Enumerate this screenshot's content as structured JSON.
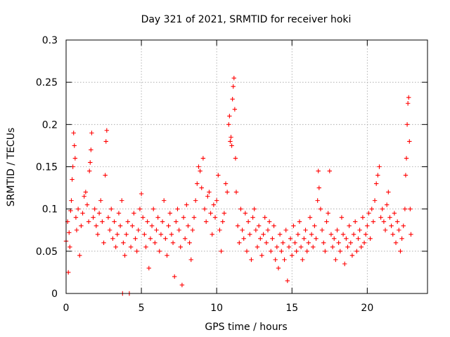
{
  "chart_data": {
    "type": "scatter",
    "title": "Day 321 of 2021, SRMTID for receiver hoki",
    "xlabel": "GPS time / hours",
    "ylabel": "SRMTID / TECUs",
    "xlim": [
      0,
      24
    ],
    "ylim": [
      0,
      0.3
    ],
    "x_ticks": [
      0,
      5,
      10,
      15,
      20
    ],
    "x_tick_labels": [
      "0",
      "5",
      "10",
      "15",
      "20"
    ],
    "y_ticks": [
      0,
      0.05,
      0.1,
      0.15,
      0.2,
      0.25,
      0.3
    ],
    "y_tick_labels": [
      "0",
      "0.05",
      "0.1",
      "0.15",
      "0.2",
      "0.25",
      "0.3"
    ],
    "grid": true,
    "marker": "plus",
    "color": "#ff0000",
    "series": [
      {
        "name": "SRMTID",
        "points": [
          [
            0.0,
            0.062
          ],
          [
            0.1,
            0.085
          ],
          [
            0.15,
            0.025
          ],
          [
            0.2,
            0.072
          ],
          [
            0.25,
            0.055
          ],
          [
            0.3,
            0.098
          ],
          [
            0.35,
            0.11
          ],
          [
            0.4,
            0.135
          ],
          [
            0.45,
            0.15
          ],
          [
            0.5,
            0.19
          ],
          [
            0.55,
            0.175
          ],
          [
            0.6,
            0.16
          ],
          [
            0.65,
            0.09
          ],
          [
            0.7,
            0.075
          ],
          [
            0.8,
            0.1
          ],
          [
            0.9,
            0.045
          ],
          [
            1.0,
            0.08
          ],
          [
            1.1,
            0.095
          ],
          [
            1.2,
            0.115
          ],
          [
            1.3,
            0.12
          ],
          [
            1.4,
            0.105
          ],
          [
            1.5,
            0.085
          ],
          [
            1.55,
            0.145
          ],
          [
            1.6,
            0.155
          ],
          [
            1.65,
            0.17
          ],
          [
            1.7,
            0.19
          ],
          [
            1.8,
            0.09
          ],
          [
            1.9,
            0.1
          ],
          [
            2.0,
            0.08
          ],
          [
            2.1,
            0.07
          ],
          [
            2.2,
            0.095
          ],
          [
            2.3,
            0.11
          ],
          [
            2.4,
            0.085
          ],
          [
            2.5,
            0.06
          ],
          [
            2.6,
            0.14
          ],
          [
            2.65,
            0.18
          ],
          [
            2.7,
            0.193
          ],
          [
            2.8,
            0.09
          ],
          [
            2.9,
            0.075
          ],
          [
            3.0,
            0.1
          ],
          [
            3.1,
            0.065
          ],
          [
            3.2,
            0.085
          ],
          [
            3.3,
            0.055
          ],
          [
            3.4,
            0.07
          ],
          [
            3.5,
            0.095
          ],
          [
            3.6,
            0.08
          ],
          [
            3.7,
            0.11
          ],
          [
            3.75,
            0.0
          ],
          [
            3.8,
            0.06
          ],
          [
            3.9,
            0.045
          ],
          [
            4.0,
            0.07
          ],
          [
            4.1,
            0.085
          ],
          [
            4.2,
            0.0
          ],
          [
            4.3,
            0.055
          ],
          [
            4.4,
            0.08
          ],
          [
            4.5,
            0.095
          ],
          [
            4.6,
            0.065
          ],
          [
            4.7,
            0.05
          ],
          [
            4.8,
            0.075
          ],
          [
            4.9,
            0.1
          ],
          [
            5.0,
            0.118
          ],
          [
            5.1,
            0.09
          ],
          [
            5.2,
            0.07
          ],
          [
            5.3,
            0.055
          ],
          [
            5.4,
            0.085
          ],
          [
            5.5,
            0.03
          ],
          [
            5.6,
            0.065
          ],
          [
            5.7,
            0.08
          ],
          [
            5.8,
            0.1
          ],
          [
            5.9,
            0.06
          ],
          [
            6.0,
            0.075
          ],
          [
            6.1,
            0.09
          ],
          [
            6.2,
            0.05
          ],
          [
            6.3,
            0.07
          ],
          [
            6.4,
            0.085
          ],
          [
            6.5,
            0.11
          ],
          [
            6.6,
            0.065
          ],
          [
            6.7,
            0.045
          ],
          [
            6.8,
            0.08
          ],
          [
            6.9,
            0.095
          ],
          [
            7.0,
            0.07
          ],
          [
            7.1,
            0.06
          ],
          [
            7.2,
            0.02
          ],
          [
            7.3,
            0.085
          ],
          [
            7.4,
            0.1
          ],
          [
            7.5,
            0.075
          ],
          [
            7.6,
            0.055
          ],
          [
            7.7,
            0.01
          ],
          [
            7.8,
            0.09
          ],
          [
            7.9,
            0.065
          ],
          [
            8.0,
            0.105
          ],
          [
            8.1,
            0.08
          ],
          [
            8.2,
            0.06
          ],
          [
            8.3,
            0.04
          ],
          [
            8.4,
            0.075
          ],
          [
            8.5,
            0.09
          ],
          [
            8.6,
            0.11
          ],
          [
            8.7,
            0.13
          ],
          [
            8.8,
            0.15
          ],
          [
            8.9,
            0.145
          ],
          [
            9.0,
            0.125
          ],
          [
            9.1,
            0.16
          ],
          [
            9.2,
            0.1
          ],
          [
            9.3,
            0.085
          ],
          [
            9.4,
            0.115
          ],
          [
            9.5,
            0.12
          ],
          [
            9.6,
            0.095
          ],
          [
            9.7,
            0.07
          ],
          [
            9.8,
            0.105
          ],
          [
            9.9,
            0.09
          ],
          [
            10.0,
            0.11
          ],
          [
            10.1,
            0.14
          ],
          [
            10.2,
            0.075
          ],
          [
            10.3,
            0.05
          ],
          [
            10.4,
            0.085
          ],
          [
            10.5,
            0.095
          ],
          [
            10.6,
            0.13
          ],
          [
            10.7,
            0.12
          ],
          [
            10.8,
            0.2
          ],
          [
            10.85,
            0.21
          ],
          [
            10.9,
            0.18
          ],
          [
            10.95,
            0.185
          ],
          [
            11.0,
            0.175
          ],
          [
            11.05,
            0.23
          ],
          [
            11.1,
            0.245
          ],
          [
            11.15,
            0.255
          ],
          [
            11.2,
            0.218
          ],
          [
            11.25,
            0.16
          ],
          [
            11.3,
            0.12
          ],
          [
            11.4,
            0.08
          ],
          [
            11.5,
            0.06
          ],
          [
            11.6,
            0.1
          ],
          [
            11.7,
            0.075
          ],
          [
            11.8,
            0.065
          ],
          [
            11.9,
            0.095
          ],
          [
            12.0,
            0.05
          ],
          [
            12.1,
            0.085
          ],
          [
            12.2,
            0.07
          ],
          [
            12.3,
            0.04
          ],
          [
            12.4,
            0.09
          ],
          [
            12.5,
            0.1
          ],
          [
            12.6,
            0.075
          ],
          [
            12.7,
            0.055
          ],
          [
            12.8,
            0.08
          ],
          [
            12.9,
            0.065
          ],
          [
            13.0,
            0.045
          ],
          [
            13.1,
            0.07
          ],
          [
            13.2,
            0.09
          ],
          [
            13.3,
            0.06
          ],
          [
            13.4,
            0.075
          ],
          [
            13.5,
            0.085
          ],
          [
            13.6,
            0.05
          ],
          [
            13.7,
            0.065
          ],
          [
            13.8,
            0.08
          ],
          [
            13.9,
            0.04
          ],
          [
            14.0,
            0.055
          ],
          [
            14.1,
            0.03
          ],
          [
            14.2,
            0.07
          ],
          [
            14.3,
            0.05
          ],
          [
            14.4,
            0.06
          ],
          [
            14.5,
            0.04
          ],
          [
            14.6,
            0.075
          ],
          [
            14.7,
            0.015
          ],
          [
            14.8,
            0.055
          ],
          [
            14.9,
            0.065
          ],
          [
            15.0,
            0.045
          ],
          [
            15.1,
            0.08
          ],
          [
            15.2,
            0.06
          ],
          [
            15.3,
            0.05
          ],
          [
            15.4,
            0.07
          ],
          [
            15.5,
            0.085
          ],
          [
            15.6,
            0.055
          ],
          [
            15.7,
            0.04
          ],
          [
            15.8,
            0.065
          ],
          [
            15.9,
            0.075
          ],
          [
            16.0,
            0.05
          ],
          [
            16.1,
            0.06
          ],
          [
            16.2,
            0.09
          ],
          [
            16.3,
            0.07
          ],
          [
            16.4,
            0.055
          ],
          [
            16.5,
            0.08
          ],
          [
            16.6,
            0.065
          ],
          [
            16.7,
            0.11
          ],
          [
            16.75,
            0.145
          ],
          [
            16.8,
            0.125
          ],
          [
            16.9,
            0.1
          ],
          [
            17.0,
            0.075
          ],
          [
            17.1,
            0.06
          ],
          [
            17.2,
            0.05
          ],
          [
            17.3,
            0.085
          ],
          [
            17.4,
            0.095
          ],
          [
            17.5,
            0.145
          ],
          [
            17.6,
            0.07
          ],
          [
            17.7,
            0.055
          ],
          [
            17.8,
            0.065
          ],
          [
            17.9,
            0.04
          ],
          [
            18.0,
            0.075
          ],
          [
            18.1,
            0.06
          ],
          [
            18.2,
            0.05
          ],
          [
            18.3,
            0.09
          ],
          [
            18.4,
            0.07
          ],
          [
            18.5,
            0.035
          ],
          [
            18.6,
            0.065
          ],
          [
            18.7,
            0.055
          ],
          [
            18.8,
            0.08
          ],
          [
            18.9,
            0.06
          ],
          [
            19.0,
            0.045
          ],
          [
            19.1,
            0.07
          ],
          [
            19.2,
            0.085
          ],
          [
            19.3,
            0.05
          ],
          [
            19.4,
            0.065
          ],
          [
            19.5,
            0.075
          ],
          [
            19.6,
            0.055
          ],
          [
            19.7,
            0.09
          ],
          [
            19.8,
            0.06
          ],
          [
            19.9,
            0.07
          ],
          [
            20.0,
            0.08
          ],
          [
            20.1,
            0.095
          ],
          [
            20.2,
            0.065
          ],
          [
            20.3,
            0.1
          ],
          [
            20.4,
            0.085
          ],
          [
            20.5,
            0.11
          ],
          [
            20.6,
            0.13
          ],
          [
            20.7,
            0.14
          ],
          [
            20.8,
            0.15
          ],
          [
            20.9,
            0.09
          ],
          [
            21.0,
            0.1
          ],
          [
            21.1,
            0.085
          ],
          [
            21.2,
            0.075
          ],
          [
            21.3,
            0.105
          ],
          [
            21.4,
            0.12
          ],
          [
            21.5,
            0.09
          ],
          [
            21.6,
            0.08
          ],
          [
            21.7,
            0.07
          ],
          [
            21.8,
            0.095
          ],
          [
            21.9,
            0.06
          ],
          [
            22.0,
            0.085
          ],
          [
            22.1,
            0.075
          ],
          [
            22.2,
            0.05
          ],
          [
            22.3,
            0.065
          ],
          [
            22.4,
            0.08
          ],
          [
            22.5,
            0.1
          ],
          [
            22.55,
            0.14
          ],
          [
            22.6,
            0.16
          ],
          [
            22.65,
            0.2
          ],
          [
            22.7,
            0.225
          ],
          [
            22.75,
            0.232
          ],
          [
            22.8,
            0.18
          ],
          [
            22.85,
            0.1
          ],
          [
            22.9,
            0.07
          ]
        ]
      }
    ]
  }
}
